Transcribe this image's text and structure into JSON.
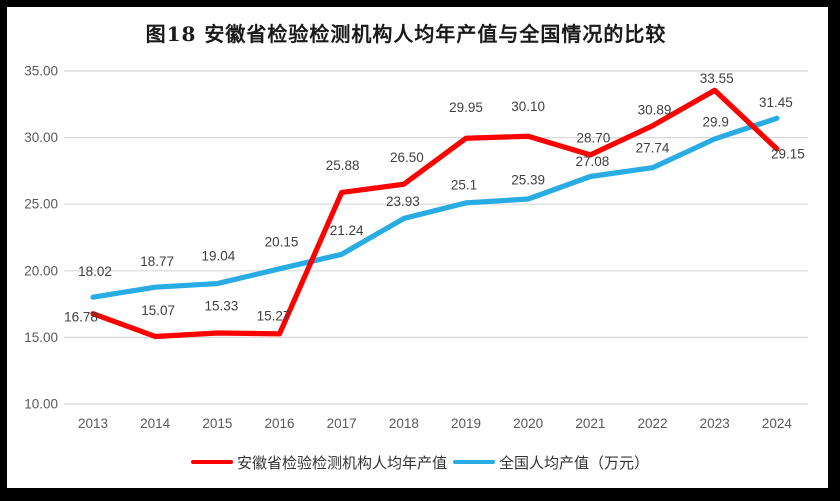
{
  "title": "图18 安徽省检验检测机构人均年产值与全国情况的比较",
  "chart_data": {
    "type": "line",
    "categories": [
      "2013",
      "2014",
      "2015",
      "2016",
      "2017",
      "2018",
      "2019",
      "2020",
      "2021",
      "2022",
      "2023",
      "2024"
    ],
    "series": [
      {
        "name": "安徽省检验检测机构人均年产值",
        "color": "#FE0000",
        "values": [
          16.78,
          15.07,
          15.33,
          15.27,
          25.88,
          26.5,
          29.95,
          30.1,
          28.7,
          30.89,
          33.55,
          29.15
        ],
        "labels": [
          "16.78",
          "15.07",
          "15.33",
          "15.27",
          "25.88",
          "26.50",
          "29.95",
          "30.10",
          "28.70",
          "30.89",
          "33.55",
          "29.15"
        ]
      },
      {
        "name": "全国人均产值（万元）",
        "color": "#29ACE3",
        "values": [
          18.02,
          18.77,
          19.04,
          20.15,
          21.24,
          23.93,
          25.1,
          25.39,
          27.08,
          27.74,
          29.9,
          31.45
        ],
        "labels": [
          "18.02",
          "18.77",
          "19.04",
          "20.15",
          "21.24",
          "23.93",
          "25.1",
          "25.39",
          "27.08",
          "27.74",
          "29.9",
          "31.45"
        ]
      }
    ],
    "ylim": [
      10,
      35
    ],
    "ytick_step": 5,
    "ytick_labels": [
      "10.00",
      "15.00",
      "20.00",
      "25.00",
      "30.00",
      "35.00"
    ],
    "grid": "horizontal-only",
    "legend_position": "bottom",
    "data_labels": true
  },
  "colors": {
    "gridline": "#D9D9D9",
    "axis_text": "#595959",
    "data_label_text": "#404040",
    "frame": "#000000"
  }
}
